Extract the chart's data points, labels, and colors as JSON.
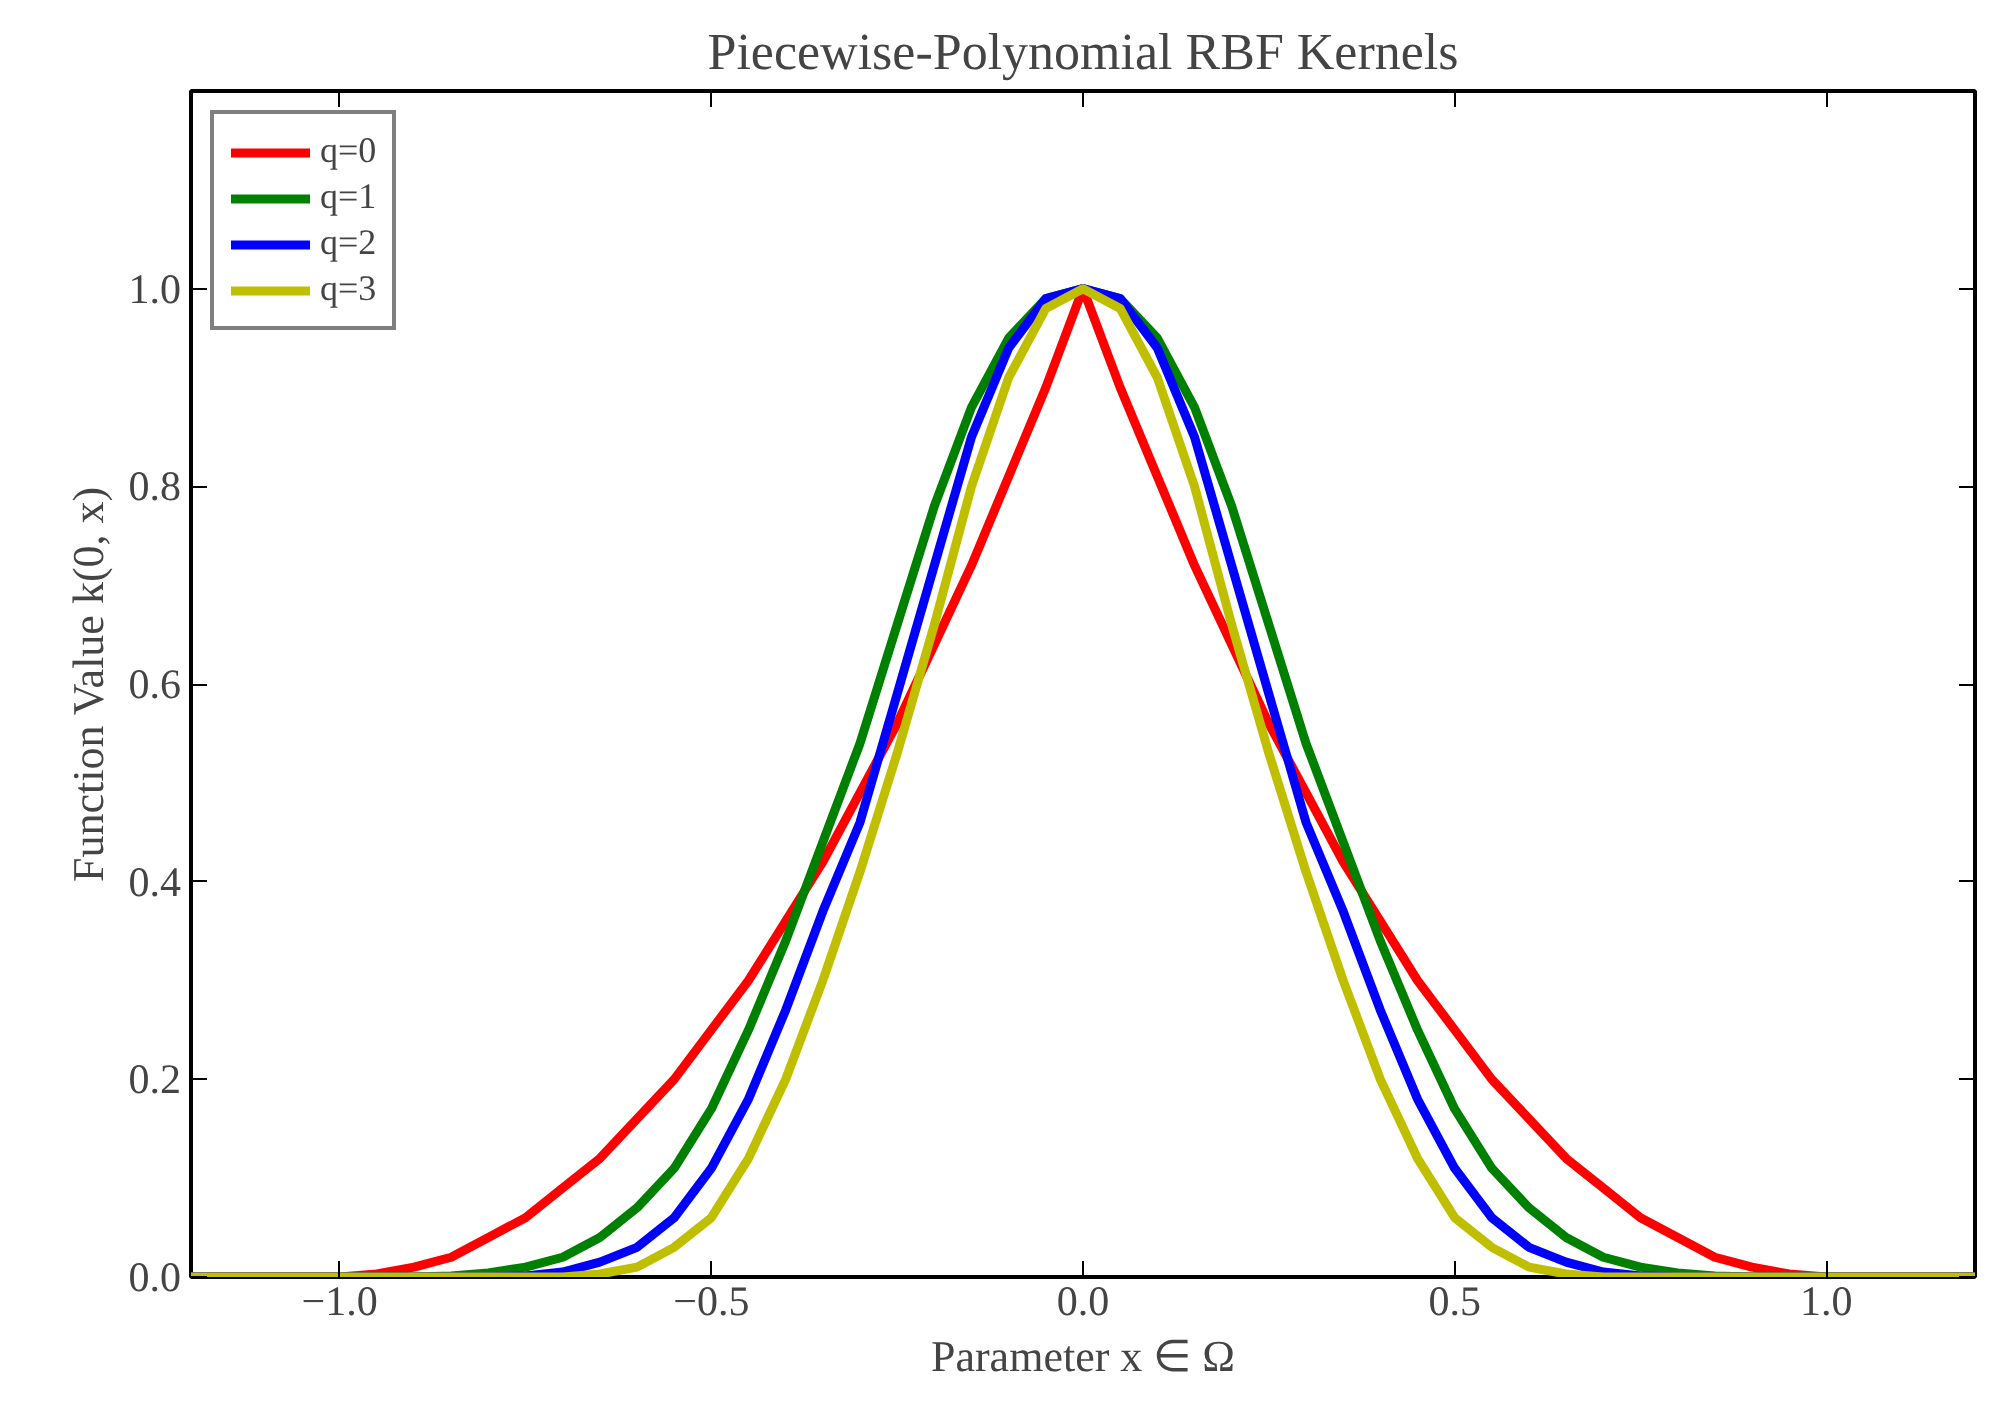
{
  "chart_data": {
    "type": "line",
    "title": "Piecewise-Polynomial RBF Kernels",
    "xlabel": "Parameter x ∈ Ω",
    "ylabel": "Function Value k(0, x)",
    "xlim": [
      -1.2,
      1.2
    ],
    "ylim": [
      0,
      1.2
    ],
    "xticks": [
      {
        "value": -1.0,
        "label": "−1.0"
      },
      {
        "value": -0.5,
        "label": "−0.5"
      },
      {
        "value": 0.0,
        "label": "0.0"
      },
      {
        "value": 0.5,
        "label": "0.5"
      },
      {
        "value": 1.0,
        "label": "1.0"
      }
    ],
    "yticks": [
      {
        "value": 0.0,
        "label": "0.0"
      },
      {
        "value": 0.2,
        "label": "0.2"
      },
      {
        "value": 0.4,
        "label": "0.4"
      },
      {
        "value": 0.6,
        "label": "0.6"
      },
      {
        "value": 0.8,
        "label": "0.8"
      },
      {
        "value": 1.0,
        "label": "1.0"
      }
    ],
    "grid": false,
    "legend": "top left",
    "line_style": "solid",
    "marker": "none",
    "series": [
      {
        "name": "q=0",
        "color": "#ff0000",
        "x": [
          -1.2,
          -1.0,
          -0.95,
          -0.9,
          -0.85,
          -0.8,
          -0.75,
          -0.7,
          -0.65,
          -0.6,
          -0.55,
          -0.5,
          -0.45,
          -0.4,
          -0.35,
          -0.3,
          -0.25,
          -0.2,
          -0.15,
          -0.1,
          -0.05,
          0.0,
          0.05,
          0.1,
          0.15,
          0.2,
          0.25,
          0.3,
          0.35,
          0.4,
          0.45,
          0.5,
          0.55,
          0.6,
          0.65,
          0.7,
          0.75,
          0.8,
          0.85,
          0.9,
          0.95,
          1.0,
          1.2
        ],
        "values": [
          0,
          0,
          0.003,
          0.01,
          0.02,
          0.04,
          0.06,
          0.09,
          0.12,
          0.16,
          0.2,
          0.25,
          0.3,
          0.36,
          0.42,
          0.49,
          0.56,
          0.64,
          0.72,
          0.81,
          0.9,
          1.0,
          0.9,
          0.81,
          0.72,
          0.64,
          0.56,
          0.49,
          0.42,
          0.36,
          0.3,
          0.25,
          0.2,
          0.16,
          0.12,
          0.09,
          0.06,
          0.04,
          0.02,
          0.01,
          0.003,
          0,
          0
        ]
      },
      {
        "name": "q=1",
        "color": "#008000",
        "x": [
          -1.2,
          -0.9,
          -0.85,
          -0.8,
          -0.75,
          -0.7,
          -0.65,
          -0.6,
          -0.55,
          -0.5,
          -0.45,
          -0.4,
          -0.35,
          -0.3,
          -0.25,
          -0.2,
          -0.15,
          -0.1,
          -0.05,
          0.0,
          0.05,
          0.1,
          0.15,
          0.2,
          0.25,
          0.3,
          0.35,
          0.4,
          0.45,
          0.5,
          0.55,
          0.6,
          0.65,
          0.7,
          0.75,
          0.8,
          0.85,
          0.9,
          1.2
        ],
        "values": [
          0,
          0,
          0.001,
          0.004,
          0.01,
          0.02,
          0.04,
          0.07,
          0.11,
          0.17,
          0.25,
          0.34,
          0.44,
          0.54,
          0.66,
          0.78,
          0.88,
          0.95,
          0.99,
          1.0,
          0.99,
          0.95,
          0.88,
          0.78,
          0.66,
          0.54,
          0.44,
          0.34,
          0.25,
          0.17,
          0.11,
          0.07,
          0.04,
          0.02,
          0.01,
          0.004,
          0.001,
          0,
          0
        ]
      },
      {
        "name": "q=2",
        "color": "#0000ff",
        "x": [
          -1.2,
          -0.8,
          -0.75,
          -0.7,
          -0.65,
          -0.6,
          -0.55,
          -0.5,
          -0.45,
          -0.4,
          -0.35,
          -0.3,
          -0.25,
          -0.2,
          -0.15,
          -0.1,
          -0.05,
          0.0,
          0.05,
          0.1,
          0.15,
          0.2,
          0.25,
          0.3,
          0.35,
          0.4,
          0.45,
          0.5,
          0.55,
          0.6,
          0.65,
          0.7,
          0.75,
          0.8,
          1.2
        ],
        "values": [
          0,
          0,
          0.001,
          0.005,
          0.015,
          0.03,
          0.06,
          0.11,
          0.18,
          0.27,
          0.37,
          0.46,
          0.59,
          0.72,
          0.85,
          0.94,
          0.99,
          1.0,
          0.99,
          0.94,
          0.85,
          0.72,
          0.59,
          0.46,
          0.37,
          0.27,
          0.18,
          0.11,
          0.06,
          0.03,
          0.015,
          0.005,
          0.001,
          0,
          0
        ]
      },
      {
        "name": "q=3",
        "color": "#bfbf00",
        "x": [
          -1.2,
          -0.7,
          -0.65,
          -0.6,
          -0.55,
          -0.5,
          -0.45,
          -0.4,
          -0.35,
          -0.3,
          -0.25,
          -0.2,
          -0.15,
          -0.1,
          -0.05,
          0.0,
          0.05,
          0.1,
          0.15,
          0.2,
          0.25,
          0.3,
          0.35,
          0.4,
          0.45,
          0.5,
          0.55,
          0.6,
          0.65,
          0.7,
          1.2
        ],
        "values": [
          0,
          0,
          0.003,
          0.01,
          0.03,
          0.06,
          0.12,
          0.2,
          0.3,
          0.41,
          0.53,
          0.66,
          0.8,
          0.91,
          0.98,
          1.0,
          0.98,
          0.91,
          0.8,
          0.66,
          0.53,
          0.41,
          0.3,
          0.2,
          0.12,
          0.06,
          0.03,
          0.01,
          0.003,
          0,
          0
        ]
      }
    ]
  }
}
